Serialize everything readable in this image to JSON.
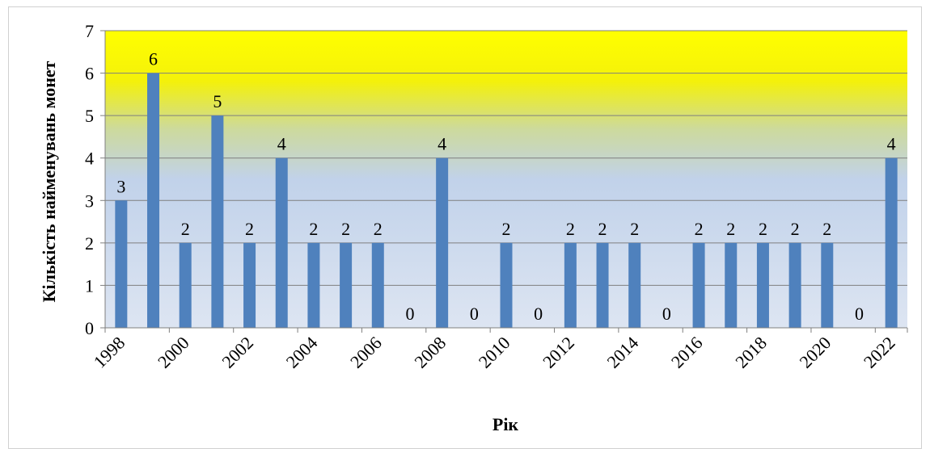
{
  "chart_data": {
    "type": "bar",
    "xlabel": "Рік",
    "ylabel": "Кількість найменувань монет",
    "ylim": [
      0,
      7
    ],
    "yticks": [
      0,
      1,
      2,
      3,
      4,
      5,
      6,
      7
    ],
    "grid": true,
    "legend": "none",
    "categories": [
      "1998",
      "1999",
      "2000",
      "2001",
      "2002",
      "2003",
      "2004",
      "2005",
      "2006",
      "2007",
      "2008",
      "2009",
      "2010",
      "2011",
      "2012",
      "2013",
      "2014",
      "2015",
      "2016",
      "2017",
      "2018",
      "2019",
      "2020",
      "2021",
      "2022"
    ],
    "x_tick_labels": [
      "1998",
      "2000",
      "2002",
      "2004",
      "2006",
      "2008",
      "2010",
      "2012",
      "2014",
      "2016",
      "2018",
      "2020",
      "2022"
    ],
    "values": [
      3,
      6,
      2,
      5,
      2,
      4,
      2,
      2,
      2,
      0,
      4,
      0,
      2,
      0,
      2,
      2,
      2,
      0,
      2,
      2,
      2,
      2,
      2,
      0,
      4
    ],
    "colors": {
      "bar": "#4f81bd",
      "plot_top": "#ffff00",
      "plot_bottom": "#dbe3f1",
      "gridline": "#7f7f7f"
    }
  }
}
